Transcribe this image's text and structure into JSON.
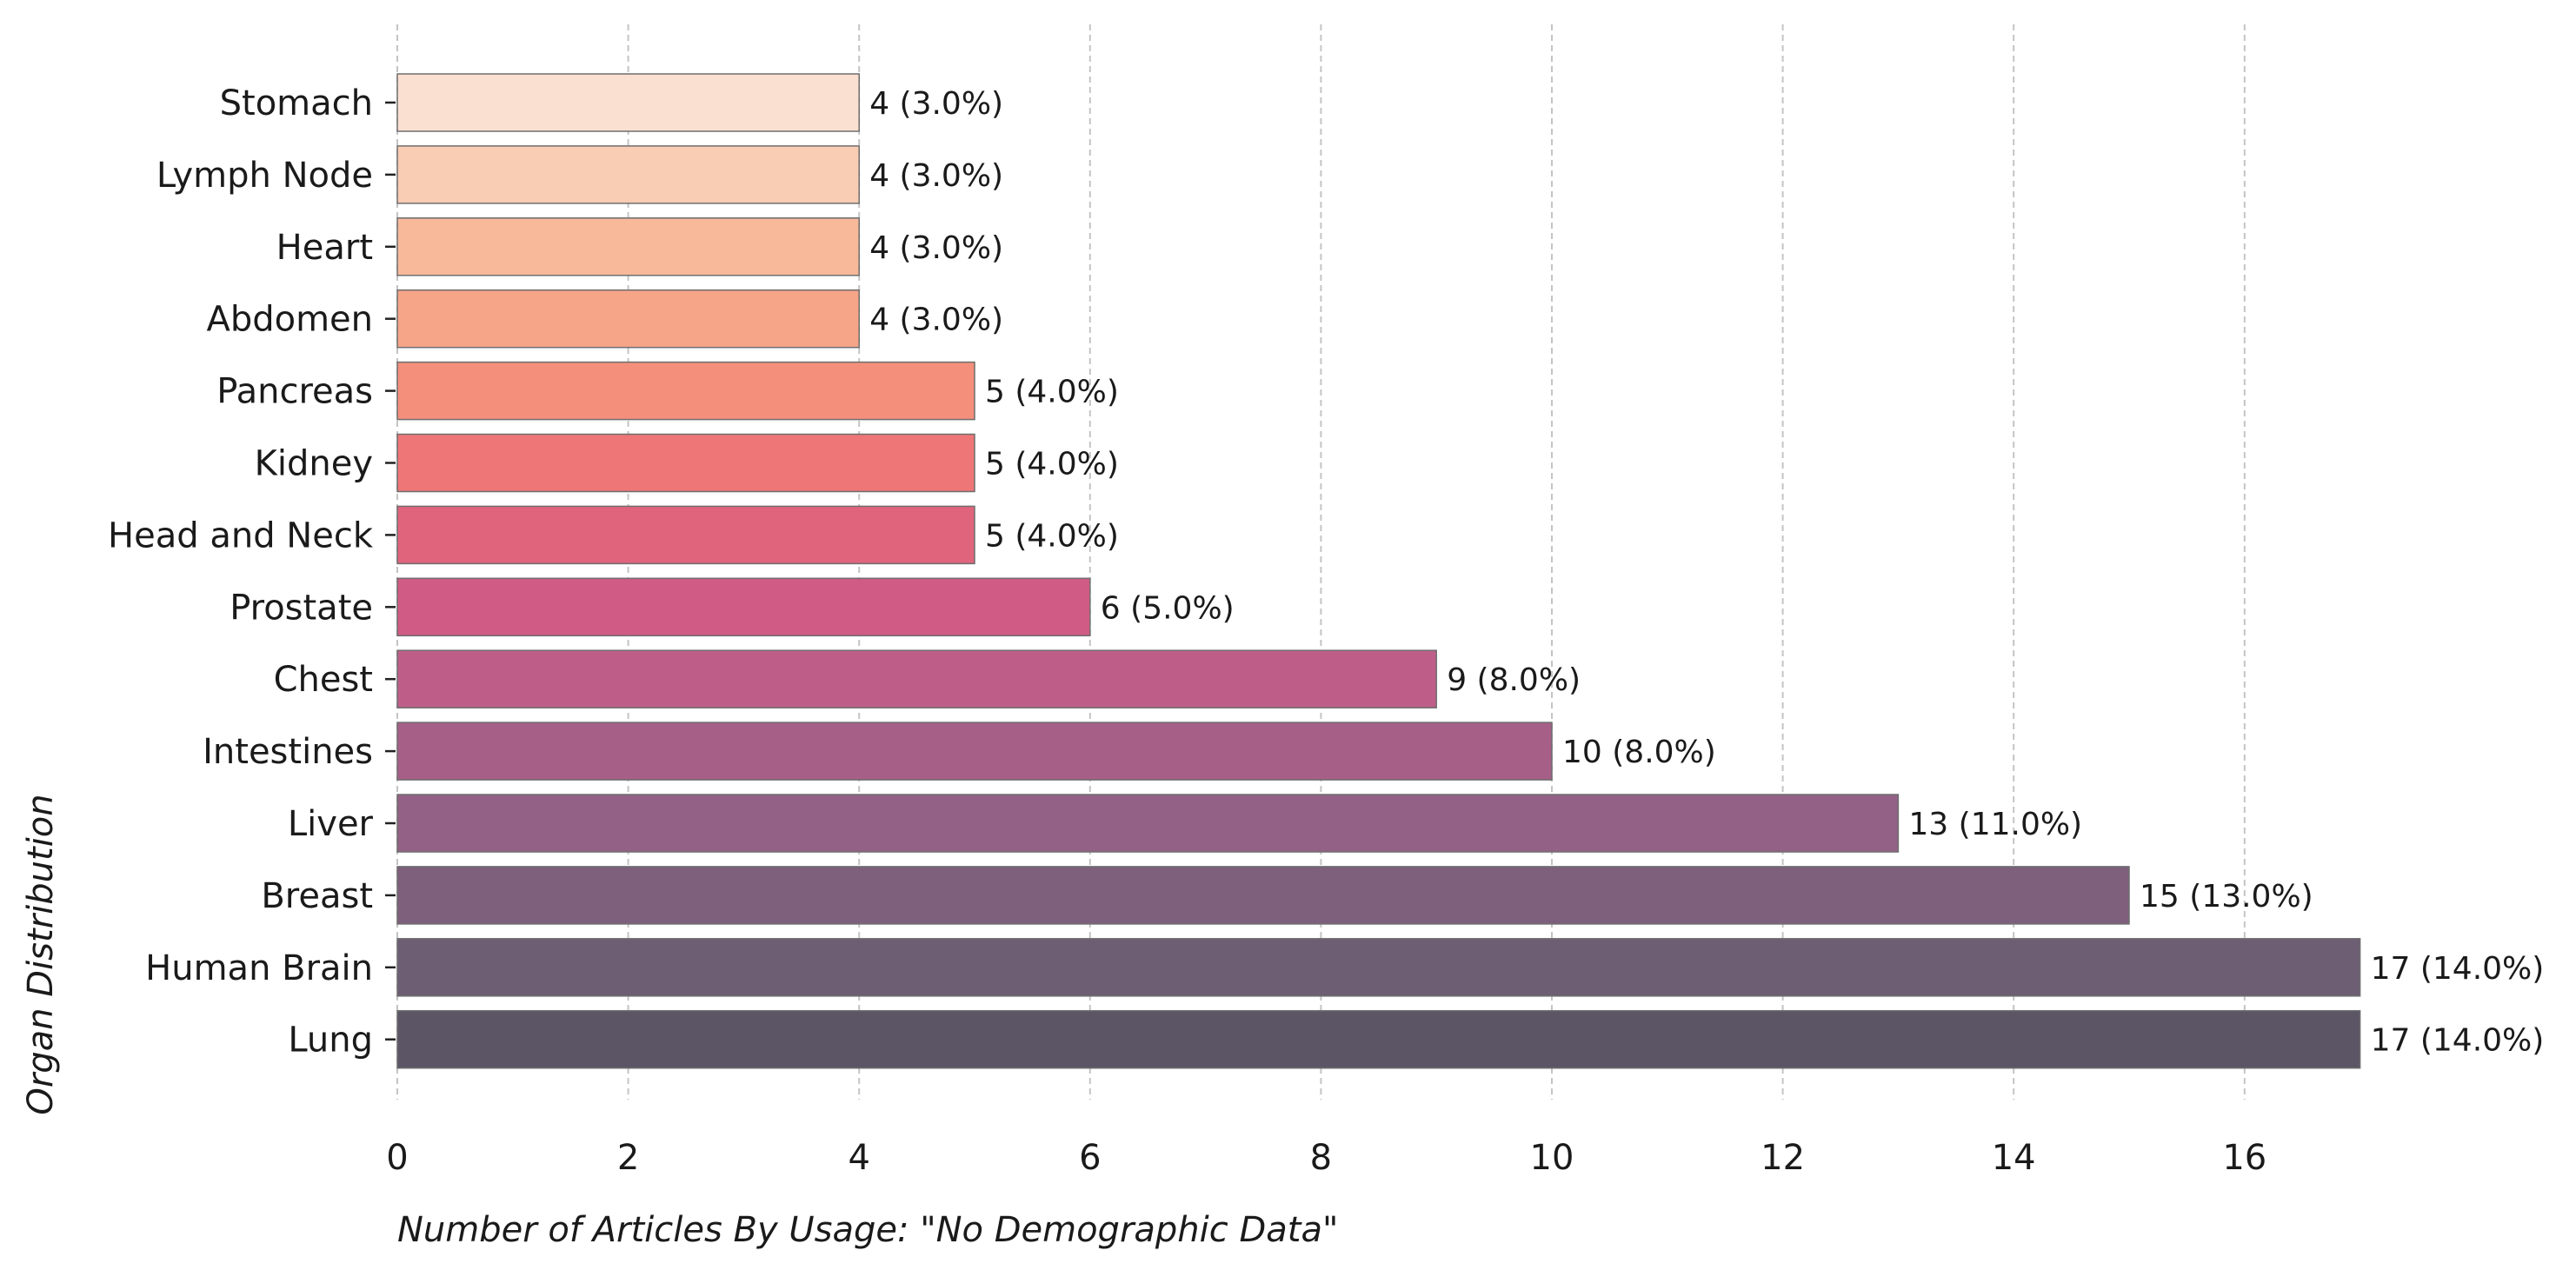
{
  "chart_data": {
    "type": "bar",
    "orientation": "horizontal",
    "categories": [
      "Stomach",
      "Lymph Node",
      "Heart",
      "Abdomen",
      "Pancreas",
      "Kidney",
      "Head and Neck",
      "Prostate",
      "Chest",
      "Intestines",
      "Liver",
      "Breast",
      "Human Brain",
      "Lung"
    ],
    "values": [
      4,
      4,
      4,
      4,
      5,
      5,
      5,
      6,
      9,
      10,
      13,
      15,
      17,
      17
    ],
    "percent_labels": [
      "4 (3.0%)",
      "4 (3.0%)",
      "4 (3.0%)",
      "4 (3.0%)",
      "5 (4.0%)",
      "5 (4.0%)",
      "5 (4.0%)",
      "6 (5.0%)",
      "9 (8.0%)",
      "10 (8.0%)",
      "13 (11.0%)",
      "15 (13.0%)",
      "17 (14.0%)",
      "17 (14.0%)"
    ],
    "colors": [
      "#fae0d1",
      "#f9ccb4",
      "#f8b99b",
      "#f6a589",
      "#f38f7b",
      "#ee7677",
      "#e0647c",
      "#d05b85",
      "#be5e88",
      "#a65f87",
      "#936185",
      "#7e5f7c",
      "#6d5e73",
      "#5c5565"
    ],
    "xlabel": "Number of Articles By Usage: \"No Demographic Data\"",
    "ylabel": "Organ Distribution",
    "xlim": [
      0,
      18.6
    ],
    "xticks": [
      0,
      2,
      4,
      6,
      8,
      10,
      12,
      14,
      16
    ],
    "grid": "x-dashed",
    "legend": "none"
  }
}
